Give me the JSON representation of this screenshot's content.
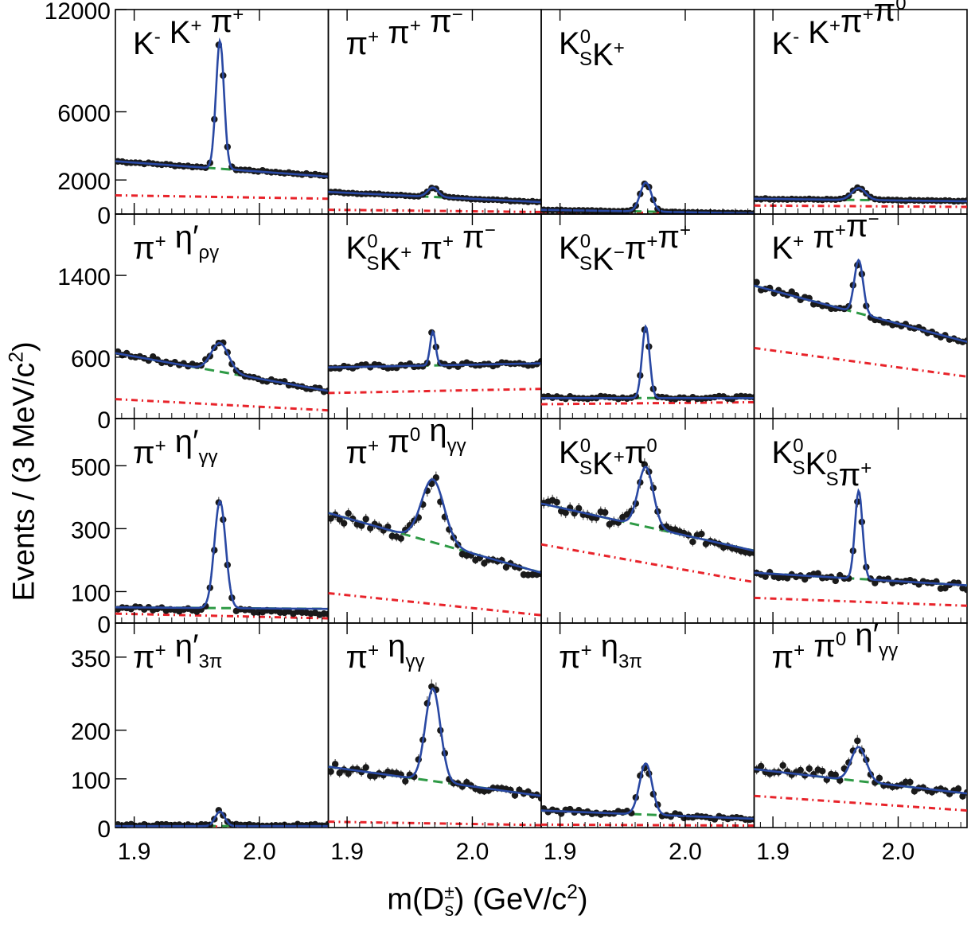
{
  "xlabel": {
    "pre": "m(D",
    "sup": "±",
    "sub": "s",
    "post": ") (GeV/c",
    "sup2": "2",
    "close": ")"
  },
  "ylabel": {
    "pre": "Events / (3 MeV/c",
    "sup": "2",
    "close": ")"
  },
  "colors": {
    "fit": "#2948a3",
    "bkg_green": "#2e9a45",
    "bkg_red": "#e8232a",
    "points": "#1a1a1a",
    "frame": "#000000"
  },
  "chart_data": {
    "type": "scatter",
    "description_type": "grid of 16 invariant-mass histograms with fits",
    "xlim": [
      1.885,
      2.055
    ],
    "xticks": [
      1.9,
      2.0
    ],
    "xtick_labels": [
      "1.9",
      "2.0"
    ],
    "rows": [
      {
        "ylim": [
          0,
          12000
        ],
        "yticks": [
          0,
          2000,
          6000,
          12000
        ],
        "ytick_labels": [
          "0",
          "2000",
          "6000",
          "12000"
        ]
      },
      {
        "ylim": [
          0,
          2000
        ],
        "yticks": [
          0,
          600,
          1400
        ],
        "ytick_labels": [
          "0",
          "600",
          "1400"
        ]
      },
      {
        "ylim": [
          0,
          650
        ],
        "yticks": [
          0,
          100,
          300,
          500
        ],
        "ytick_labels": [
          "0",
          "100",
          "300",
          "500"
        ]
      },
      {
        "ylim": [
          0,
          420
        ],
        "yticks": [
          0,
          100,
          200,
          350
        ],
        "ytick_labels": [
          "0",
          "100",
          "200",
          "350"
        ]
      }
    ],
    "panels": [
      {
        "label": [
          [
            "K",
            "",
            "-",
            ""
          ],
          [
            " K",
            "",
            "+",
            ""
          ],
          [
            " π",
            "",
            "+",
            ""
          ]
        ],
        "peak": 7500,
        "width": 0.0032,
        "bkg_green": [
          3100,
          2200
        ],
        "bkg_red": [
          1100,
          900
        ],
        "data_bkg": [
          3100,
          2250
        ]
      },
      {
        "label": [
          [
            "π",
            "",
            "+",
            ""
          ],
          [
            " π",
            "",
            "+",
            ""
          ],
          [
            " π",
            "",
            "−",
            ""
          ]
        ],
        "peak": 550,
        "width": 0.0042,
        "bkg_green": [
          1300,
          700
        ],
        "bkg_red": [
          250,
          120
        ],
        "data_bkg": [
          1300,
          700
        ]
      },
      {
        "label": [
          [
            "K",
            "S",
            "0",
            ""
          ],
          [
            "K",
            "",
            "+",
            ""
          ]
        ],
        "peak": 1700,
        "width": 0.0045,
        "bkg_green": [
          250,
          40
        ],
        "bkg_red": [
          120,
          30
        ],
        "data_bkg": [
          250,
          40
        ]
      },
      {
        "label": [
          [
            "K",
            "",
            "-",
            ""
          ],
          [
            " K",
            "",
            "+",
            ""
          ],
          [
            "π",
            "",
            "+",
            ""
          ],
          [
            "π",
            "",
            "0",
            ""
          ]
        ],
        "peak": 700,
        "width": 0.0055,
        "bkg_green": [
          900,
          750
        ],
        "bkg_red": [
          500,
          420
        ],
        "data_bkg": [
          900,
          760
        ]
      },
      {
        "label": [
          [
            "π",
            "",
            "+",
            ""
          ],
          [
            " η′",
            "ργ",
            "",
            ""
          ]
        ],
        "peak": 280,
        "width": 0.007,
        "bkg_green": [
          640,
          270
        ],
        "bkg_red": [
          190,
          80
        ],
        "data_bkg": [
          650,
          270
        ]
      },
      {
        "label": [
          [
            "K",
            "S",
            "0",
            ""
          ],
          [
            "K",
            "",
            "+",
            ""
          ],
          [
            " π",
            "",
            "+",
            ""
          ],
          [
            " π",
            "",
            "−",
            ""
          ]
        ],
        "peak": 330,
        "width": 0.0022,
        "bkg_green": [
          500,
          540
        ],
        "bkg_red": [
          250,
          290
        ],
        "data_bkg": [
          500,
          540
        ]
      },
      {
        "label": [
          [
            "K",
            "S",
            "0",
            ""
          ],
          [
            "K",
            "",
            "−",
            ""
          ],
          [
            "π",
            "",
            "+",
            ""
          ],
          [
            "π",
            "",
            "+",
            ""
          ]
        ],
        "peak": 700,
        "width": 0.003,
        "bkg_green": [
          200,
          200
        ],
        "bkg_red": [
          140,
          160
        ],
        "data_bkg": [
          205,
          205
        ]
      },
      {
        "label": [
          [
            "K",
            "",
            "+",
            ""
          ],
          [
            " π",
            "",
            "+",
            ""
          ],
          [
            "π",
            "",
            "−",
            ""
          ]
        ],
        "peak": 520,
        "width": 0.0035,
        "bkg_green": [
          1300,
          750
        ],
        "bkg_red": [
          690,
          410
        ],
        "data_bkg": [
          1310,
          740
        ]
      },
      {
        "label": [
          [
            "π",
            "",
            "+",
            ""
          ],
          [
            " η′",
            "γγ",
            "",
            ""
          ]
        ],
        "peak": 340,
        "width": 0.0045,
        "bkg_green": [
          50,
          45
        ],
        "bkg_red": [
          30,
          15
        ],
        "data_bkg": [
          50,
          30
        ]
      },
      {
        "label": [
          [
            "π",
            "",
            "+",
            ""
          ],
          [
            " π",
            "",
            "0",
            ""
          ],
          [
            " η",
            "γγ",
            "",
            ""
          ]
        ],
        "peak": 200,
        "width": 0.009,
        "bkg_green": [
          350,
          160
        ],
        "bkg_red": [
          95,
          25
        ],
        "data_bkg": [
          350,
          150
        ]
      },
      {
        "label": [
          [
            "K",
            "S",
            "0",
            ""
          ],
          [
            "K",
            "",
            "+",
            ""
          ],
          [
            "π",
            "",
            "0",
            ""
          ]
        ],
        "peak": 190,
        "width": 0.006,
        "bkg_green": [
          380,
          230
        ],
        "bkg_red": [
          250,
          130
        ],
        "data_bkg": [
          380,
          230
        ]
      },
      {
        "label": [
          [
            "K",
            "S",
            "0",
            ""
          ],
          [
            "K",
            "S",
            "0",
            ""
          ],
          [
            "π",
            "",
            "+",
            ""
          ]
        ],
        "peak": 280,
        "width": 0.003,
        "bkg_green": [
          160,
          120
        ],
        "bkg_red": [
          80,
          55
        ],
        "data_bkg": [
          160,
          115
        ]
      },
      {
        "label": [
          [
            "π",
            "",
            "+",
            ""
          ],
          [
            " η′",
            "3π",
            "",
            ""
          ]
        ],
        "peak": 30,
        "width": 0.0038,
        "bkg_green": [
          3,
          3
        ],
        "bkg_red": [
          2,
          2
        ],
        "data_bkg": [
          5,
          5
        ]
      },
      {
        "label": [
          [
            "π",
            "",
            "+",
            ""
          ],
          [
            " η",
            "γγ",
            "",
            ""
          ]
        ],
        "peak": 190,
        "width": 0.006,
        "bkg_green": [
          125,
          65
        ],
        "bkg_red": [
          12,
          5
        ],
        "data_bkg": [
          125,
          65
        ]
      },
      {
        "label": [
          [
            "π",
            "",
            "+",
            ""
          ],
          [
            " η",
            "3π",
            "",
            ""
          ]
        ],
        "peak": 105,
        "width": 0.005,
        "bkg_green": [
          35,
          18
        ],
        "bkg_red": [
          6,
          4
        ],
        "data_bkg": [
          35,
          18
        ]
      },
      {
        "label": [
          [
            "π",
            "",
            "+",
            ""
          ],
          [
            " π",
            "",
            "0",
            ""
          ],
          [
            " η′",
            "γγ",
            "",
            ""
          ]
        ],
        "peak": 70,
        "width": 0.006,
        "bkg_green": [
          120,
          70
        ],
        "bkg_red": [
          65,
          35
        ],
        "data_bkg": [
          125,
          70
        ]
      }
    ]
  }
}
